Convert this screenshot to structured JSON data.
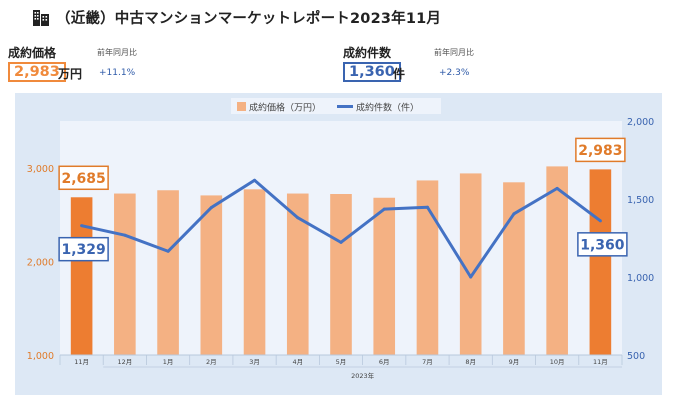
{
  "header": {
    "title": "（近畿）中古マンションマーケットレポート2023年11月",
    "icon": "building-icon"
  },
  "kpis": [
    {
      "label": "成約価格",
      "sub_label": "前年同月比",
      "value": "2,983",
      "unit": "万円",
      "change": "+11.1%",
      "color": "#f08a3c"
    },
    {
      "label": "成約件数",
      "sub_label": "前年同月比",
      "value": "1,360",
      "unit": "件",
      "change": "+2.3%",
      "color": "#3a64b0"
    }
  ],
  "chart_data": {
    "type": "bar+line",
    "categories": [
      "11月",
      "12月",
      "1月",
      "2月",
      "3月",
      "4月",
      "5月",
      "6月",
      "7月",
      "8月",
      "9月",
      "10月",
      "11月"
    ],
    "year_label": "2023年",
    "series": [
      {
        "name": "成約価格（万円）",
        "type": "bar",
        "axis": "left",
        "values": [
          2685,
          2725,
          2760,
          2705,
          2770,
          2725,
          2720,
          2680,
          2865,
          2940,
          2845,
          3015,
          2983
        ]
      },
      {
        "name": "成約件数（件）",
        "type": "line",
        "axis": "right",
        "values": [
          1329,
          1268,
          1165,
          1445,
          1620,
          1380,
          1222,
          1435,
          1447,
          1000,
          1405,
          1568,
          1360
        ]
      }
    ],
    "y_left": {
      "min": 1000,
      "max": 3500,
      "ticks": [
        "1,000",
        "2,000",
        "3,000"
      ],
      "tick_values": [
        1000,
        2000,
        3000
      ]
    },
    "y_right": {
      "min": 500,
      "max": 2000,
      "ticks": [
        "500",
        "1,000",
        "1,500",
        "2,000"
      ],
      "tick_values": [
        500,
        1000,
        1500,
        2000
      ]
    },
    "annotations": [
      {
        "series": 0,
        "index": 0,
        "text": "2,685"
      },
      {
        "series": 0,
        "index": 12,
        "text": "2,983"
      },
      {
        "series": 1,
        "index": 0,
        "text": "1,329"
      },
      {
        "series": 1,
        "index": 12,
        "text": "1,360"
      }
    ],
    "legend_position": "top",
    "colors": {
      "bar": "#f4b183",
      "bar_highlight": "#ed7d31",
      "line": "#4472c4",
      "left_axis": "#e07b2a",
      "right_axis": "#3a64b0",
      "plot_bg": "#eef3fb",
      "outer_bg": "#dde8f5"
    }
  }
}
